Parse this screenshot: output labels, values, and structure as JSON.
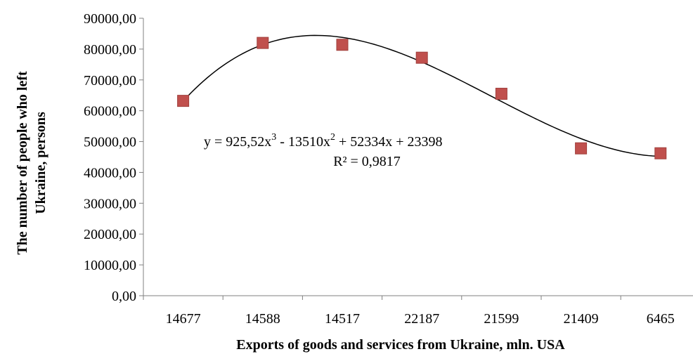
{
  "chart_data": {
    "type": "scatter",
    "categories": [
      "14677",
      "14588",
      "14517",
      "22187",
      "21599",
      "21409",
      "6465"
    ],
    "x": [
      1,
      2,
      3,
      4,
      5,
      6,
      7
    ],
    "values": [
      63200,
      82000,
      81400,
      77200,
      65500,
      47800,
      46200
    ],
    "xlabel": "Exports of goods and services from Ukraine, mln. USA",
    "ylabel_line1": "The number of people who left",
    "ylabel_line2": "Ukraine, persons",
    "ylim": [
      0,
      90000
    ],
    "yticks": [
      "0,00",
      "10000,00",
      "20000,00",
      "30000,00",
      "40000,00",
      "50000,00",
      "60000,00",
      "70000,00",
      "80000,00",
      "90000,00"
    ],
    "trendline": {
      "type": "polynomial",
      "order": 3,
      "coefficients": [
        925.52,
        -13510,
        52334,
        23398
      ],
      "equation_parts": [
        "y = 925,52x",
        "3",
        " - 13510x",
        "2",
        " + 52334x + 23398"
      ],
      "r2_label": "R² = 0,9817",
      "color": "#000000"
    },
    "marker_color": "#c0504d",
    "marker_border": "#a0403d",
    "grid": false,
    "legend": "none"
  }
}
